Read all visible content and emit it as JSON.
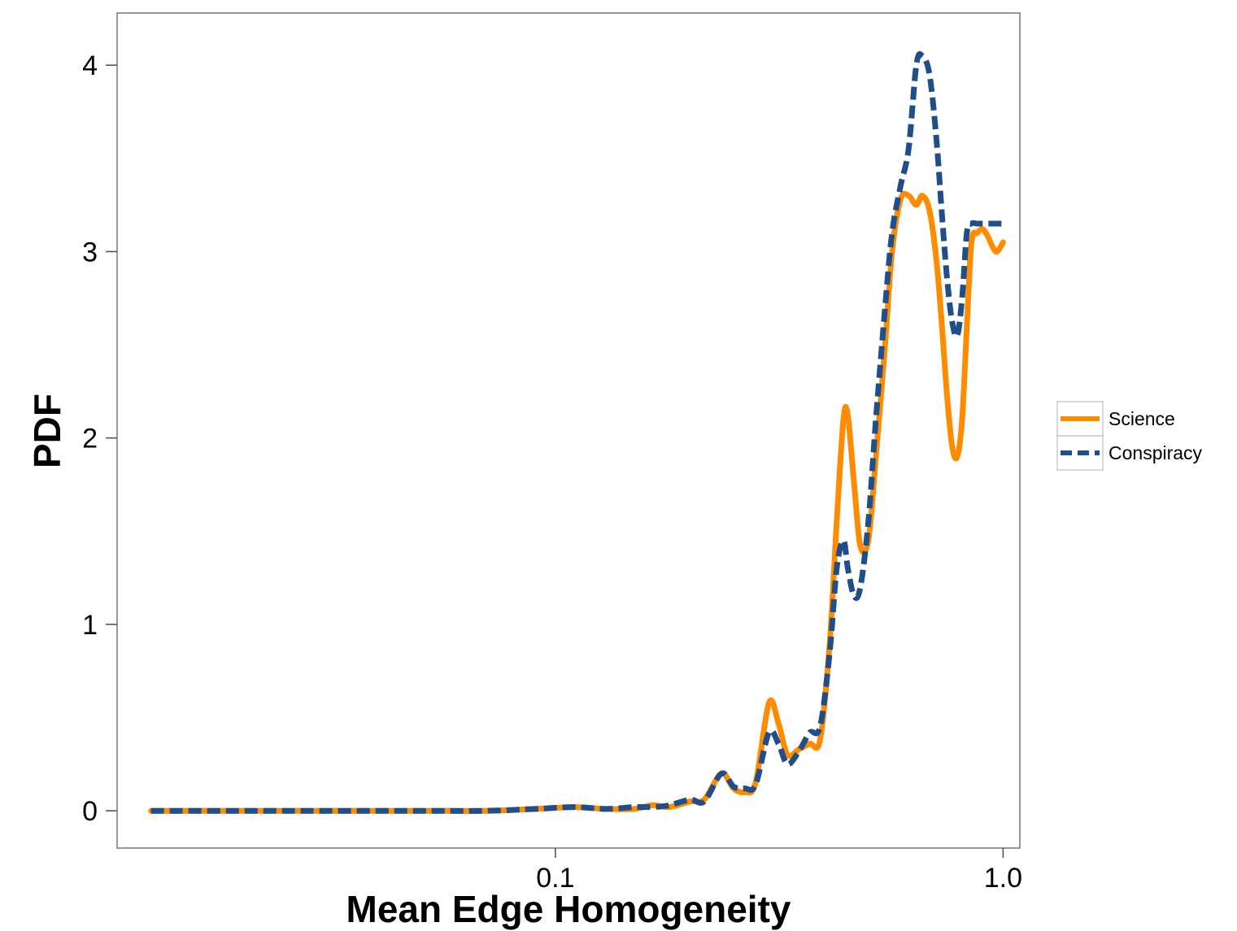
{
  "chart_data": {
    "type": "line",
    "title": "",
    "xlabel": "Mean Edge Homogeneity",
    "ylabel": "PDF",
    "x_scale": "log10",
    "xlim": [
      0.0105,
      1.09
    ],
    "ylim": [
      -0.2,
      4.28
    ],
    "x_ticks": [
      0.1,
      1.0
    ],
    "x_tick_labels": [
      "0.1",
      "1.0"
    ],
    "y_ticks": [
      0,
      1,
      2,
      3,
      4
    ],
    "y_tick_labels": [
      "0",
      "1",
      "2",
      "3",
      "4"
    ],
    "grid": false,
    "legend_position": "right",
    "series": [
      {
        "name": "Science",
        "color": "#FF8C00",
        "dash": "solid",
        "x": [
          0.0125,
          0.02,
          0.03,
          0.05,
          0.07,
          0.09,
          0.11,
          0.13,
          0.15,
          0.165,
          0.18,
          0.2,
          0.215,
          0.235,
          0.25,
          0.265,
          0.28,
          0.3,
          0.315,
          0.33,
          0.35,
          0.37,
          0.39,
          0.41,
          0.425,
          0.44,
          0.45,
          0.465,
          0.48,
          0.5,
          0.52,
          0.545,
          0.565,
          0.59,
          0.615,
          0.64,
          0.66,
          0.685,
          0.71,
          0.73,
          0.75,
          0.77,
          0.79,
          0.81,
          0.83,
          0.85,
          0.875,
          0.9,
          0.925,
          0.95,
          0.97,
          1.0
        ],
        "y": [
          0,
          0,
          0,
          0,
          0.0,
          0.01,
          0.02,
          0.01,
          0.01,
          0.03,
          0.02,
          0.05,
          0.06,
          0.2,
          0.12,
          0.1,
          0.15,
          0.58,
          0.47,
          0.3,
          0.33,
          0.36,
          0.38,
          0.9,
          1.55,
          2.1,
          2.12,
          1.75,
          1.42,
          1.45,
          1.9,
          2.5,
          3.0,
          3.28,
          3.3,
          3.25,
          3.3,
          3.22,
          2.95,
          2.6,
          2.22,
          1.95,
          1.9,
          2.1,
          2.6,
          3.05,
          3.1,
          3.12,
          3.08,
          3.02,
          3.0,
          3.05
        ]
      },
      {
        "name": "Conspiracy",
        "color": "#1F4E88",
        "dash": "dashed",
        "x": [
          0.0125,
          0.02,
          0.03,
          0.05,
          0.07,
          0.09,
          0.11,
          0.13,
          0.15,
          0.165,
          0.18,
          0.2,
          0.215,
          0.235,
          0.25,
          0.265,
          0.28,
          0.3,
          0.315,
          0.33,
          0.35,
          0.37,
          0.39,
          0.41,
          0.425,
          0.44,
          0.45,
          0.465,
          0.48,
          0.5,
          0.52,
          0.545,
          0.565,
          0.59,
          0.615,
          0.64,
          0.66,
          0.685,
          0.71,
          0.73,
          0.75,
          0.77,
          0.79,
          0.81,
          0.83,
          0.85,
          0.875,
          0.9,
          0.925,
          0.95,
          0.97,
          1.0
        ],
        "y": [
          0,
          0,
          0,
          0,
          0.0,
          0.01,
          0.02,
          0.01,
          0.02,
          0.02,
          0.03,
          0.06,
          0.05,
          0.2,
          0.13,
          0.12,
          0.14,
          0.42,
          0.36,
          0.25,
          0.32,
          0.42,
          0.45,
          0.85,
          1.3,
          1.45,
          1.3,
          1.15,
          1.2,
          1.55,
          2.1,
          2.7,
          3.1,
          3.35,
          3.55,
          4.0,
          4.05,
          3.95,
          3.6,
          3.2,
          2.85,
          2.62,
          2.55,
          2.75,
          3.1,
          3.15,
          3.15,
          3.15,
          3.15,
          3.15,
          3.15,
          3.15
        ]
      }
    ]
  }
}
